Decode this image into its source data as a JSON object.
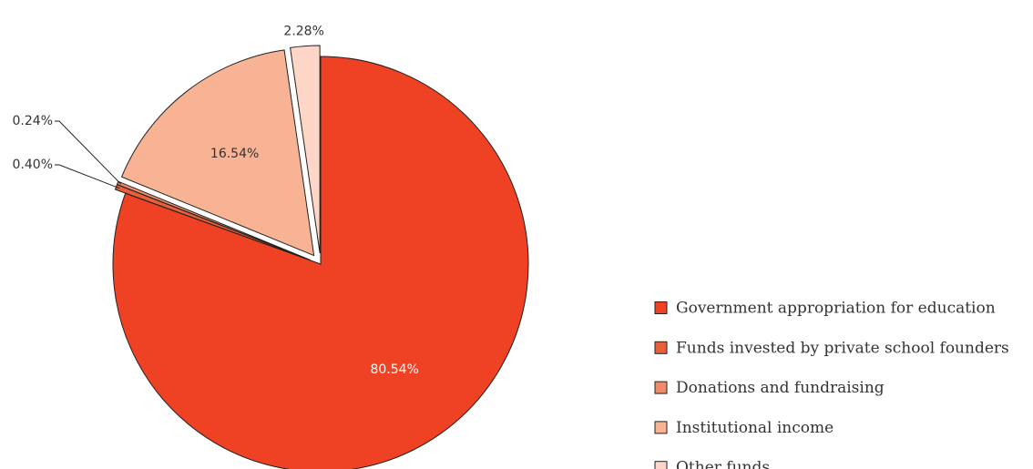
{
  "chart_data": {
    "type": "pie",
    "categories": [
      "Government appropriation for education",
      "Funds invested by private school founders",
      "Donations and fundraising",
      "Institutional income",
      "Other funds"
    ],
    "values": [
      80.54,
      0.4,
      0.24,
      16.54,
      2.28
    ],
    "value_labels": [
      "80.54%",
      "0.40%",
      "0.24%",
      "16.54%",
      "2.28%"
    ],
    "colors": [
      "#ef4123",
      "#e8603a",
      "#f08a68",
      "#f8b294",
      "#fdd6c7"
    ],
    "legend": "right"
  }
}
